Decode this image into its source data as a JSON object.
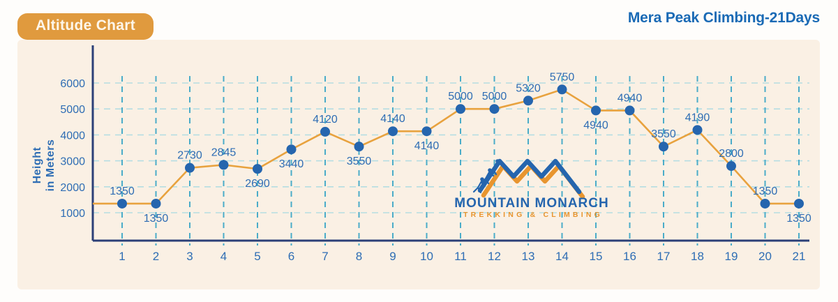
{
  "header": {
    "badge_label": "Altitude Chart",
    "title": "Mera Peak Climbing-21Days"
  },
  "logo": {
    "name": "MOUNTAIN MONARCH",
    "tagline": "TREKKING & CLIMBING"
  },
  "chart_data": {
    "type": "line",
    "title": "Altitude Chart",
    "series_name": "Altitude",
    "x": [
      1,
      2,
      3,
      4,
      5,
      6,
      7,
      8,
      9,
      10,
      11,
      12,
      13,
      14,
      15,
      16,
      17,
      18,
      19,
      20,
      21
    ],
    "values": [
      1350,
      1350,
      2730,
      2845,
      2690,
      3440,
      4120,
      3550,
      4140,
      4140,
      5000,
      5000,
      5320,
      5750,
      4940,
      4940,
      3550,
      4190,
      2800,
      1350,
      1350
    ],
    "label_positions": [
      "above",
      "below",
      "above",
      "above",
      "below",
      "below",
      "above",
      "below",
      "above",
      "below",
      "above",
      "above",
      "above",
      "above",
      "below",
      "above",
      "above",
      "above",
      "above",
      "above",
      "below"
    ],
    "xlabel": "",
    "ylabel": "Height in Meters",
    "ylabel_lines": [
      "Height",
      "in Meters"
    ],
    "yticks": [
      1000,
      2000,
      3000,
      4000,
      5000,
      6000
    ],
    "ylim": [
      0,
      6500
    ],
    "xlim": [
      1,
      21
    ],
    "grid": true,
    "legend_position": "none",
    "line_starts_at_y_axis": true,
    "colors": {
      "badge_bg": "#E09A3E",
      "badge_text": "#FDF6EA",
      "title_text": "#1A6AB5",
      "page_bg": "#FEFDFB",
      "panel_bg": "#FAF0E4",
      "axis": "#2B3F77",
      "grid_vertical": "#4AACC9",
      "grid_horizontal": "#B5DDE2",
      "line": "#E8A23E",
      "marker": "#2565AE",
      "data_label": "#2E6DB4",
      "tick_label": "#2E6DB4",
      "logo_blue": "#2565AE",
      "logo_orange": "#E8952F"
    }
  }
}
